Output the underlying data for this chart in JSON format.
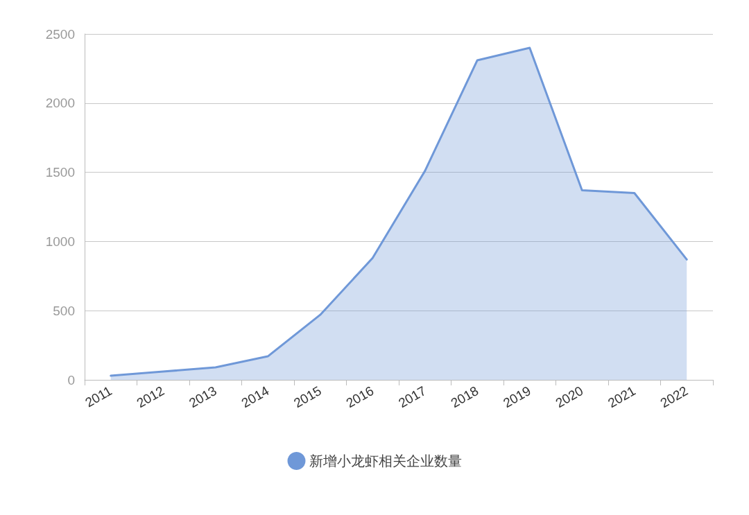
{
  "chart_data": {
    "type": "area",
    "categories": [
      "2011",
      "2012",
      "2013",
      "2014",
      "2015",
      "2016",
      "2017",
      "2018",
      "2019",
      "2020",
      "2021",
      "2022"
    ],
    "series": [
      {
        "name": "新增小龙虾相关企业数量",
        "color": "#6f98d8",
        "values": [
          30,
          60,
          90,
          170,
          470,
          880,
          1510,
          2310,
          2400,
          1370,
          1350,
          870
        ]
      }
    ],
    "ylim": [
      0,
      2500
    ],
    "yticks": [
      0,
      500,
      1000,
      1500,
      2000,
      2500
    ],
    "grid": "y",
    "legend": "bottom",
    "marker": "none",
    "line_style": "solid"
  }
}
